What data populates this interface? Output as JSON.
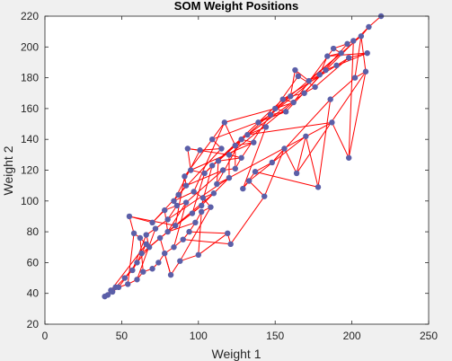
{
  "chart_data": {
    "type": "scatter",
    "title": "SOM Weight Positions",
    "xlabel": "Weight 1",
    "ylabel": "Weight 2",
    "xlim": [
      0,
      250
    ],
    "ylim": [
      20,
      220
    ],
    "xticks": [
      "0",
      "50",
      "100",
      "150",
      "200",
      "250"
    ],
    "yticks": [
      "20",
      "40",
      "60",
      "80",
      "100",
      "120",
      "140",
      "160",
      "180",
      "200",
      "220"
    ],
    "grid": false,
    "marker_color": "#5b5fa8",
    "line_color": "#ff0000",
    "points": [
      [
        219,
        220
      ],
      [
        211,
        213
      ],
      [
        206,
        207
      ],
      [
        201,
        204
      ],
      [
        197,
        202
      ],
      [
        188,
        199
      ],
      [
        193,
        196
      ],
      [
        184,
        194
      ],
      [
        210,
        196
      ],
      [
        198,
        193
      ],
      [
        190,
        188
      ],
      [
        183,
        185
      ],
      [
        179,
        182
      ],
      [
        172,
        178
      ],
      [
        163,
        185
      ],
      [
        165,
        181
      ],
      [
        176,
        174
      ],
      [
        169,
        170
      ],
      [
        160,
        168
      ],
      [
        155,
        166
      ],
      [
        162,
        164
      ],
      [
        150,
        160
      ],
      [
        157,
        158
      ],
      [
        147,
        156
      ],
      [
        139,
        151
      ],
      [
        144,
        148
      ],
      [
        132,
        143
      ],
      [
        128,
        140
      ],
      [
        136,
        138
      ],
      [
        124,
        136
      ],
      [
        117,
        151
      ],
      [
        109,
        140
      ],
      [
        115,
        134
      ],
      [
        101,
        133
      ],
      [
        93,
        134
      ],
      [
        120,
        130
      ],
      [
        128,
        128
      ],
      [
        113,
        126
      ],
      [
        109,
        123
      ],
      [
        104,
        118
      ],
      [
        95,
        120
      ],
      [
        91,
        116
      ],
      [
        92,
        110
      ],
      [
        87,
        104
      ],
      [
        84,
        100
      ],
      [
        97,
        106
      ],
      [
        103,
        102
      ],
      [
        108,
        96
      ],
      [
        102,
        93
      ],
      [
        98,
        86
      ],
      [
        94,
        80
      ],
      [
        90,
        75
      ],
      [
        84,
        70
      ],
      [
        78,
        66
      ],
      [
        74,
        60
      ],
      [
        70,
        56
      ],
      [
        64,
        54
      ],
      [
        60,
        49
      ],
      [
        54,
        46
      ],
      [
        48,
        44
      ],
      [
        44,
        41
      ],
      [
        41,
        39
      ],
      [
        39,
        38
      ],
      [
        43,
        42
      ],
      [
        46,
        44
      ],
      [
        52,
        50
      ],
      [
        57,
        55
      ],
      [
        60,
        60
      ],
      [
        63,
        66
      ],
      [
        66,
        72
      ],
      [
        62,
        76
      ],
      [
        58,
        79
      ],
      [
        55,
        90
      ],
      [
        70,
        86
      ],
      [
        78,
        94
      ],
      [
        86,
        97
      ],
      [
        80,
        88
      ],
      [
        72,
        82
      ],
      [
        66,
        78
      ],
      [
        68,
        70
      ],
      [
        75,
        76
      ],
      [
        82,
        52
      ],
      [
        88,
        61
      ],
      [
        100,
        65
      ],
      [
        119,
        79
      ],
      [
        121,
        72
      ],
      [
        143,
        103
      ],
      [
        133,
        113
      ],
      [
        129,
        108
      ],
      [
        137,
        119
      ],
      [
        148,
        125
      ],
      [
        156,
        134
      ],
      [
        164,
        118
      ],
      [
        170,
        142
      ],
      [
        178,
        109
      ],
      [
        186,
        166
      ],
      [
        202,
        180
      ],
      [
        209,
        184
      ],
      [
        198,
        128
      ],
      [
        187,
        151
      ],
      [
        112,
        111
      ],
      [
        120,
        115
      ],
      [
        110,
        105
      ],
      [
        102,
        97
      ],
      [
        96,
        92
      ],
      [
        85,
        84
      ],
      [
        80,
        80
      ],
      [
        92,
        99
      ],
      [
        116,
        120
      ],
      [
        124,
        121
      ]
    ],
    "segments": [
      [
        0,
        1
      ],
      [
        1,
        2
      ],
      [
        2,
        3
      ],
      [
        3,
        4
      ],
      [
        4,
        5
      ],
      [
        5,
        6
      ],
      [
        6,
        7
      ],
      [
        7,
        8
      ],
      [
        8,
        9
      ],
      [
        9,
        10
      ],
      [
        10,
        11
      ],
      [
        11,
        12
      ],
      [
        12,
        13
      ],
      [
        13,
        14
      ],
      [
        14,
        15
      ],
      [
        15,
        16
      ],
      [
        16,
        17
      ],
      [
        17,
        18
      ],
      [
        18,
        19
      ],
      [
        19,
        20
      ],
      [
        20,
        21
      ],
      [
        21,
        22
      ],
      [
        22,
        23
      ],
      [
        23,
        24
      ],
      [
        24,
        25
      ],
      [
        25,
        26
      ],
      [
        26,
        27
      ],
      [
        27,
        28
      ],
      [
        28,
        29
      ],
      [
        29,
        30
      ],
      [
        30,
        31
      ],
      [
        31,
        32
      ],
      [
        32,
        33
      ],
      [
        33,
        34
      ],
      [
        34,
        35
      ],
      [
        35,
        36
      ],
      [
        36,
        37
      ],
      [
        37,
        38
      ],
      [
        38,
        39
      ],
      [
        39,
        40
      ],
      [
        40,
        41
      ],
      [
        41,
        42
      ],
      [
        42,
        43
      ],
      [
        43,
        44
      ],
      [
        44,
        45
      ],
      [
        45,
        46
      ],
      [
        46,
        47
      ],
      [
        47,
        48
      ],
      [
        48,
        49
      ],
      [
        49,
        50
      ],
      [
        50,
        51
      ],
      [
        51,
        52
      ],
      [
        52,
        53
      ],
      [
        53,
        54
      ],
      [
        54,
        55
      ],
      [
        55,
        56
      ],
      [
        56,
        57
      ],
      [
        57,
        58
      ],
      [
        58,
        59
      ],
      [
        59,
        60
      ],
      [
        60,
        61
      ],
      [
        61,
        62
      ],
      [
        62,
        63
      ],
      [
        63,
        64
      ],
      [
        64,
        65
      ],
      [
        65,
        66
      ],
      [
        66,
        67
      ],
      [
        67,
        68
      ],
      [
        68,
        69
      ],
      [
        69,
        70
      ],
      [
        70,
        71
      ],
      [
        71,
        72
      ],
      [
        72,
        73
      ],
      [
        73,
        74
      ],
      [
        74,
        75
      ],
      [
        75,
        76
      ],
      [
        76,
        77
      ],
      [
        77,
        78
      ],
      [
        78,
        79
      ],
      [
        79,
        80
      ],
      [
        80,
        81
      ],
      [
        81,
        82
      ],
      [
        82,
        83
      ],
      [
        83,
        84
      ],
      [
        84,
        85
      ],
      [
        85,
        86
      ],
      [
        86,
        87
      ],
      [
        87,
        88
      ],
      [
        88,
        89
      ],
      [
        89,
        90
      ],
      [
        90,
        91
      ],
      [
        91,
        92
      ],
      [
        92,
        93
      ],
      [
        93,
        94
      ],
      [
        94,
        95
      ],
      [
        95,
        96
      ],
      [
        96,
        97
      ],
      [
        97,
        98
      ],
      [
        98,
        99
      ],
      [
        2,
        97
      ],
      [
        2,
        96
      ],
      [
        2,
        13
      ],
      [
        8,
        11
      ],
      [
        9,
        16
      ],
      [
        14,
        18
      ],
      [
        21,
        30
      ],
      [
        25,
        88
      ],
      [
        30,
        45
      ],
      [
        33,
        44
      ],
      [
        34,
        40
      ],
      [
        35,
        101
      ],
      [
        39,
        104
      ],
      [
        42,
        108
      ],
      [
        43,
        73
      ],
      [
        47,
        82
      ],
      [
        48,
        83
      ],
      [
        50,
        84
      ],
      [
        51,
        85
      ],
      [
        53,
        81
      ],
      [
        57,
        77
      ],
      [
        59,
        67
      ],
      [
        63,
        69
      ],
      [
        66,
        78
      ],
      [
        72,
        105
      ],
      [
        74,
        106
      ],
      [
        75,
        107
      ],
      [
        76,
        101
      ],
      [
        79,
        102
      ],
      [
        80,
        103
      ],
      [
        86,
        91
      ],
      [
        87,
        93
      ],
      [
        89,
        94
      ],
      [
        90,
        95
      ],
      [
        92,
        97
      ],
      [
        98,
        3
      ],
      [
        100,
        101
      ],
      [
        101,
        102
      ],
      [
        102,
        103
      ],
      [
        103,
        104
      ],
      [
        104,
        105
      ],
      [
        105,
        106
      ],
      [
        106,
        107
      ],
      [
        107,
        108
      ],
      [
        108,
        109
      ],
      [
        109,
        36
      ],
      [
        99,
        101
      ],
      [
        99,
        26
      ],
      [
        100,
        27
      ],
      [
        109,
        29
      ],
      [
        37,
        100
      ],
      [
        38,
        103
      ],
      [
        41,
        105
      ],
      [
        46,
        102
      ],
      [
        49,
        106
      ],
      [
        52,
        107
      ],
      [
        56,
        70
      ],
      [
        58,
        71
      ],
      [
        60,
        64
      ],
      [
        65,
        79
      ],
      [
        68,
        80
      ],
      [
        15,
        23
      ],
      [
        17,
        27
      ],
      [
        19,
        24
      ],
      [
        22,
        31
      ],
      [
        24,
        38
      ],
      [
        26,
        37
      ],
      [
        28,
        40
      ],
      [
        10,
        19
      ],
      [
        7,
        12
      ],
      [
        1,
        11
      ],
      [
        4,
        17
      ],
      [
        5,
        20
      ],
      [
        6,
        21
      ],
      [
        11,
        22
      ],
      [
        12,
        23
      ],
      [
        18,
        29
      ],
      [
        20,
        35
      ],
      [
        23,
        36
      ],
      [
        27,
        39
      ],
      [
        31,
        41
      ],
      [
        32,
        43
      ]
    ]
  }
}
